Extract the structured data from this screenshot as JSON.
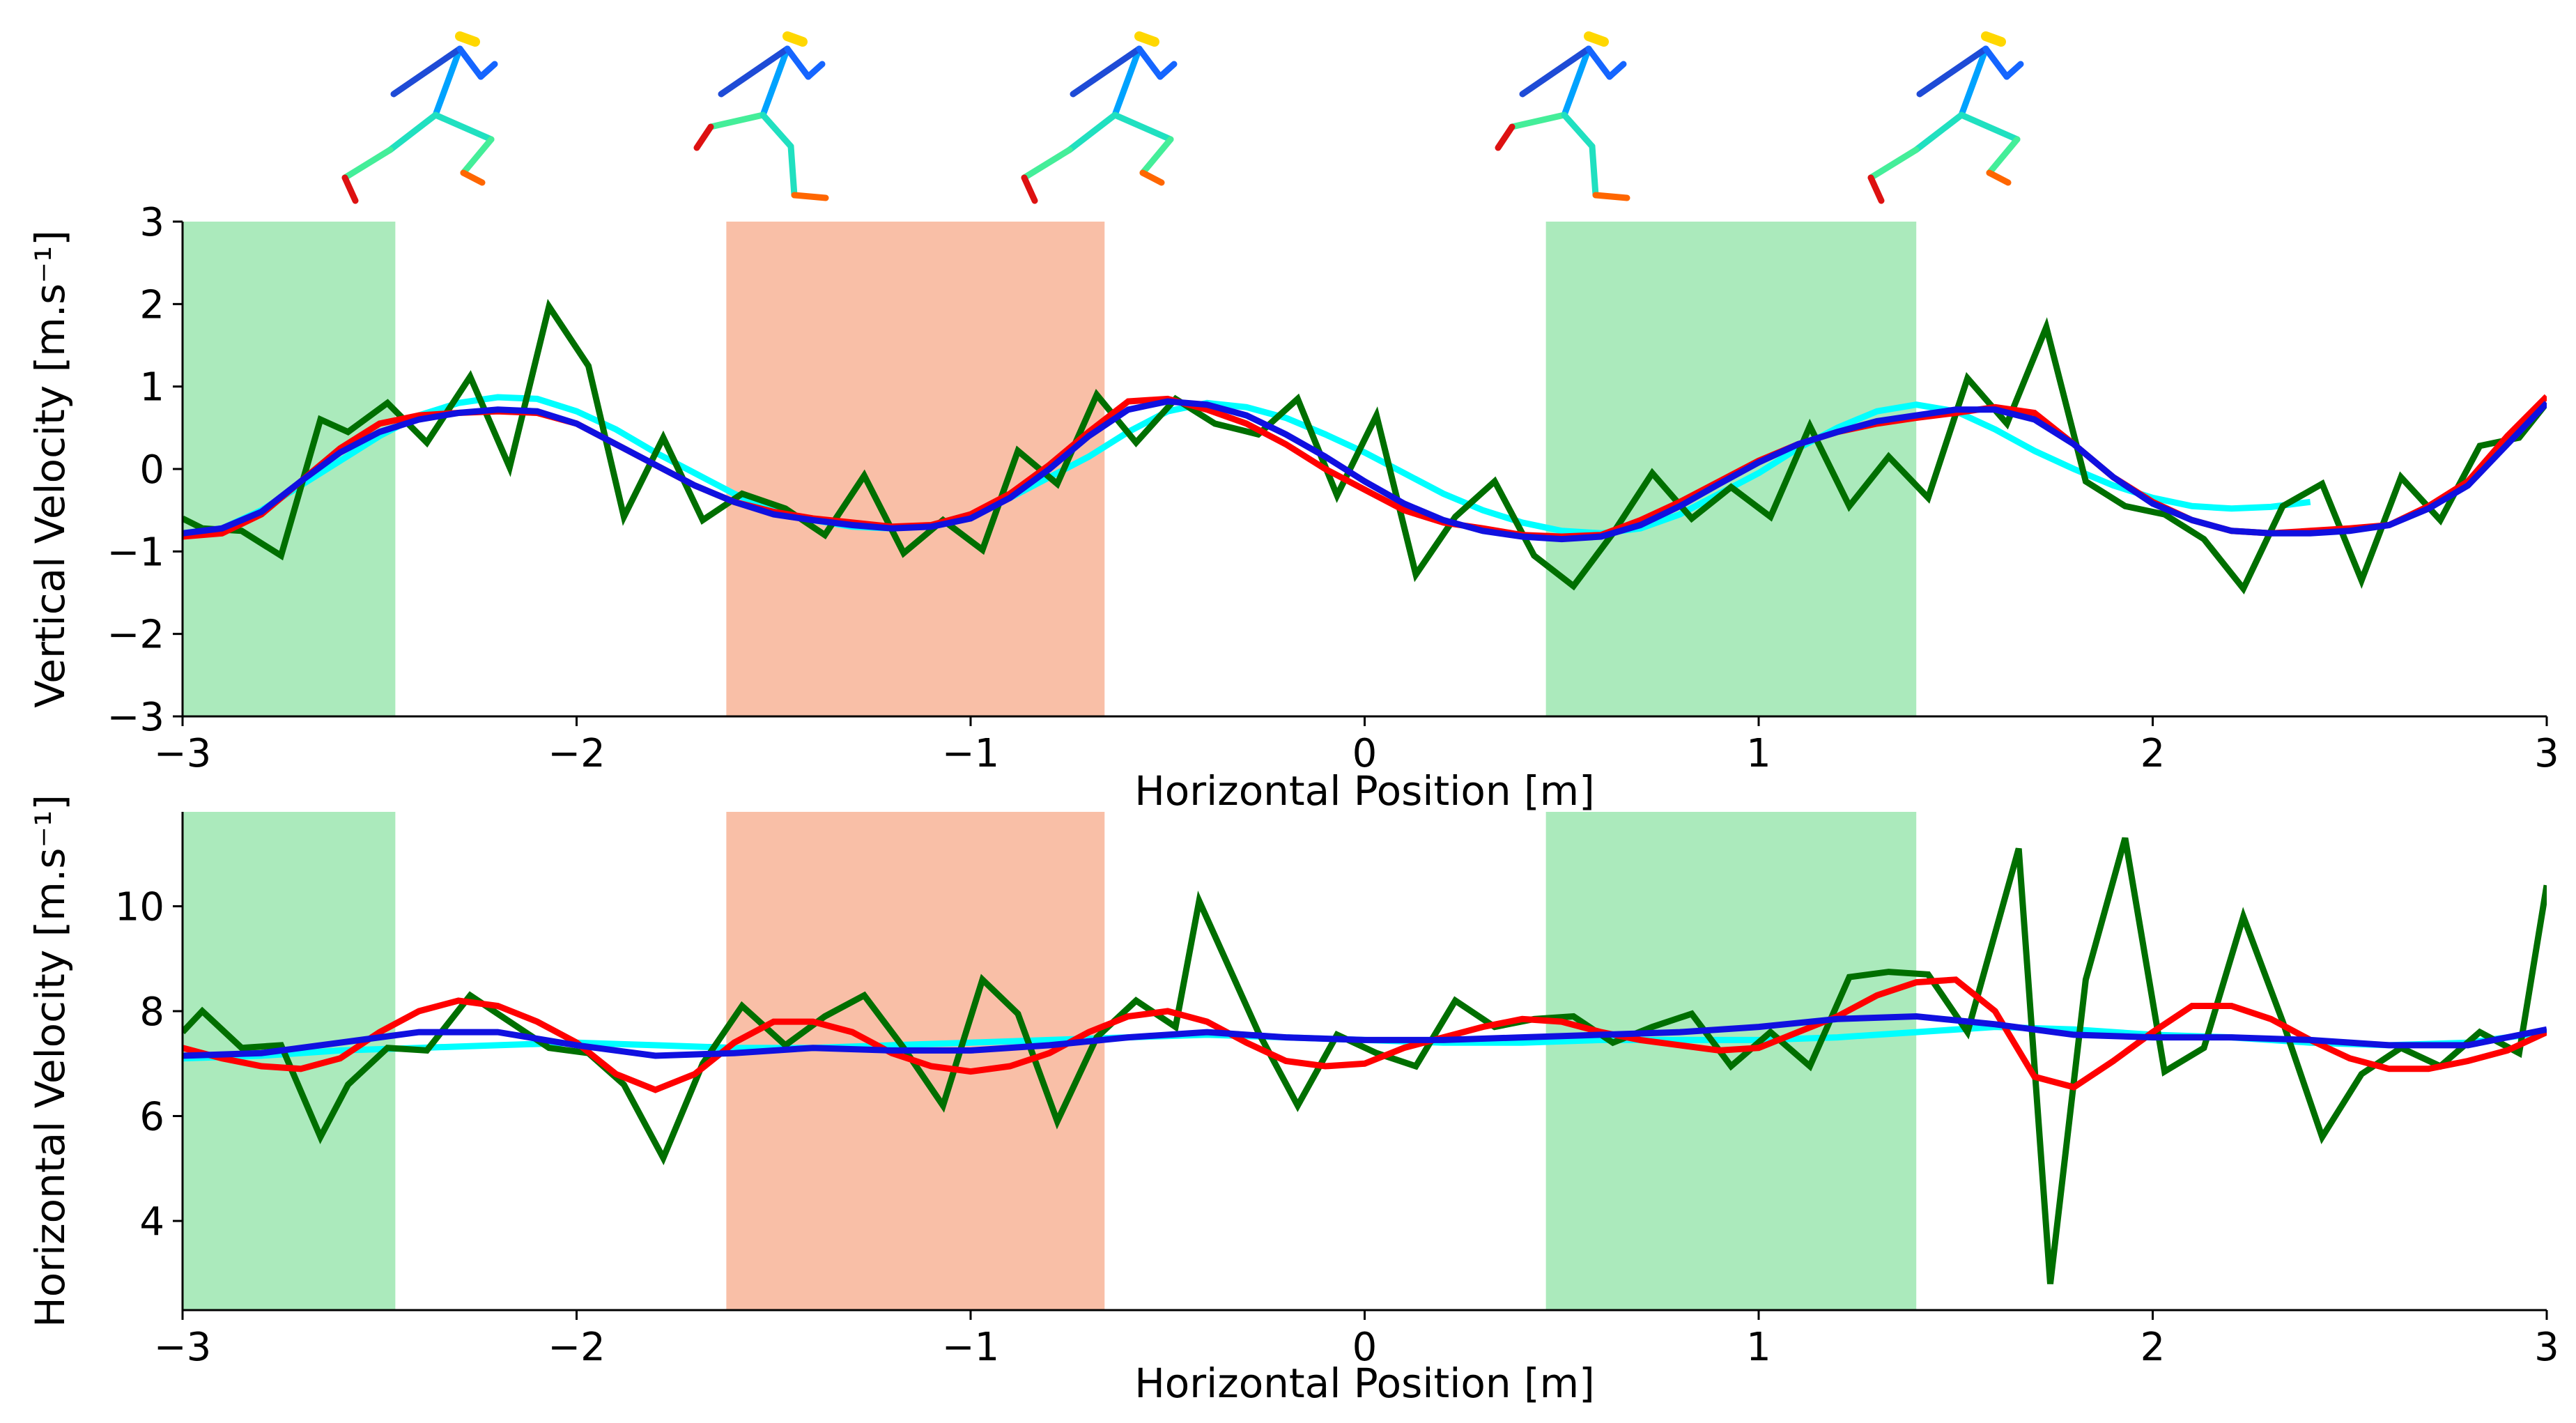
{
  "chart_data": [
    {
      "type": "line",
      "xlabel": "Horizontal Position [m]",
      "ylabel": "Vertical Velocity [m.s⁻¹]",
      "xlim": [
        -3,
        3
      ],
      "ylim": [
        -3,
        3
      ],
      "xticks": [
        -3,
        -2,
        -1,
        0,
        1,
        2,
        3
      ],
      "xtick_labels": [
        "−3",
        "−2",
        "−1",
        "0",
        "1",
        "2",
        "3"
      ],
      "yticks": [
        -3,
        -2,
        -1,
        0,
        1,
        2,
        3
      ],
      "ytick_labels": [
        "−3",
        "−2",
        "−1",
        "0",
        "1",
        "2",
        "3"
      ],
      "shaded_regions": [
        {
          "x0": -3.0,
          "x1": -2.46,
          "color": "#8fe3a6"
        },
        {
          "x0": -1.62,
          "x1": -0.66,
          "color": "#f7a98a"
        },
        {
          "x0": 0.46,
          "x1": 1.4,
          "color": "#8fe3a6"
        }
      ],
      "series": [
        {
          "color": "#00ffff",
          "x": [
            -3.0,
            -2.9,
            -2.8,
            -2.7,
            -2.6,
            -2.5,
            -2.4,
            -2.3,
            -2.2,
            -2.1,
            -2.0,
            -1.9,
            -1.8,
            -1.7,
            -1.6,
            -1.5,
            -1.4,
            -1.3,
            -1.2,
            -1.1,
            -1.0,
            -0.9,
            -0.8,
            -0.7,
            -0.6,
            -0.5,
            -0.4,
            -0.3,
            -0.2,
            -0.1,
            0.0,
            0.1,
            0.2,
            0.3,
            0.4,
            0.5,
            0.6,
            0.7,
            0.8,
            0.9,
            1.0,
            1.1,
            1.2,
            1.3,
            1.4,
            1.5,
            1.6,
            1.7,
            1.8,
            1.9,
            2.0,
            2.1,
            2.2,
            2.3,
            2.4
          ],
          "y": [
            -0.78,
            -0.72,
            -0.5,
            -0.2,
            0.1,
            0.4,
            0.65,
            0.8,
            0.87,
            0.85,
            0.7,
            0.48,
            0.2,
            -0.05,
            -0.3,
            -0.5,
            -0.62,
            -0.7,
            -0.72,
            -0.68,
            -0.55,
            -0.35,
            -0.1,
            0.15,
            0.45,
            0.7,
            0.8,
            0.75,
            0.62,
            0.42,
            0.2,
            -0.05,
            -0.3,
            -0.5,
            -0.65,
            -0.75,
            -0.78,
            -0.72,
            -0.55,
            -0.3,
            -0.05,
            0.25,
            0.5,
            0.7,
            0.78,
            0.7,
            0.48,
            0.22,
            0.0,
            -0.2,
            -0.35,
            -0.45,
            -0.48,
            -0.46,
            -0.4
          ]
        },
        {
          "color": "#006f00",
          "x": [
            -3.0,
            -2.95,
            -2.85,
            -2.75,
            -2.65,
            -2.58,
            -2.48,
            -2.38,
            -2.27,
            -2.17,
            -2.07,
            -1.97,
            -1.88,
            -1.78,
            -1.68,
            -1.58,
            -1.47,
            -1.37,
            -1.27,
            -1.17,
            -1.07,
            -0.97,
            -0.88,
            -0.78,
            -0.68,
            -0.58,
            -0.48,
            -0.38,
            -0.27,
            -0.17,
            -0.07,
            0.03,
            0.13,
            0.23,
            0.33,
            0.43,
            0.53,
            0.63,
            0.73,
            0.83,
            0.93,
            1.03,
            1.13,
            1.23,
            1.33,
            1.43,
            1.53,
            1.63,
            1.73,
            1.83,
            1.93,
            2.03,
            2.13,
            2.23,
            2.33,
            2.43,
            2.53,
            2.63,
            2.73,
            2.83,
            2.93,
            3.0
          ],
          "y": [
            -0.6,
            -0.72,
            -0.75,
            -1.05,
            0.6,
            0.45,
            0.8,
            0.32,
            1.12,
            0.02,
            1.97,
            1.25,
            -0.58,
            0.38,
            -0.62,
            -0.3,
            -0.48,
            -0.8,
            -0.08,
            -1.02,
            -0.62,
            -0.98,
            0.22,
            -0.18,
            0.9,
            0.32,
            0.85,
            0.55,
            0.42,
            0.85,
            -0.32,
            0.65,
            -1.28,
            -0.58,
            -0.15,
            -1.05,
            -1.42,
            -0.78,
            -0.05,
            -0.6,
            -0.22,
            -0.58,
            0.52,
            -0.45,
            0.15,
            -0.35,
            1.1,
            0.55,
            1.72,
            -0.15,
            -0.45,
            -0.55,
            -0.85,
            -1.45,
            -0.45,
            -0.18,
            -1.35,
            -0.1,
            -0.62,
            0.28,
            0.38,
            0.8
          ]
        },
        {
          "color": "#ff0000",
          "x": [
            -3.0,
            -2.9,
            -2.8,
            -2.7,
            -2.6,
            -2.5,
            -2.4,
            -2.3,
            -2.2,
            -2.1,
            -2.0,
            -1.9,
            -1.8,
            -1.7,
            -1.6,
            -1.5,
            -1.4,
            -1.3,
            -1.2,
            -1.1,
            -1.0,
            -0.9,
            -0.8,
            -0.7,
            -0.6,
            -0.5,
            -0.4,
            -0.3,
            -0.2,
            -0.1,
            0.0,
            0.1,
            0.2,
            0.3,
            0.4,
            0.5,
            0.6,
            0.7,
            0.8,
            0.9,
            1.0,
            1.1,
            1.2,
            1.3,
            1.4,
            1.5,
            1.6,
            1.7,
            1.8,
            1.9,
            2.0,
            2.1,
            2.2,
            2.3,
            2.4,
            2.5,
            2.6,
            2.7,
            2.8,
            2.9,
            3.0
          ],
          "y": [
            -0.82,
            -0.78,
            -0.55,
            -0.15,
            0.25,
            0.55,
            0.65,
            0.68,
            0.7,
            0.68,
            0.55,
            0.3,
            0.05,
            -0.2,
            -0.4,
            -0.52,
            -0.6,
            -0.65,
            -0.7,
            -0.68,
            -0.55,
            -0.3,
            0.05,
            0.45,
            0.82,
            0.85,
            0.72,
            0.55,
            0.3,
            0.0,
            -0.25,
            -0.5,
            -0.65,
            -0.72,
            -0.8,
            -0.82,
            -0.8,
            -0.62,
            -0.4,
            -0.15,
            0.1,
            0.3,
            0.45,
            0.55,
            0.62,
            0.68,
            0.75,
            0.68,
            0.3,
            -0.1,
            -0.4,
            -0.62,
            -0.75,
            -0.78,
            -0.75,
            -0.72,
            -0.68,
            -0.45,
            -0.15,
            0.4,
            0.88
          ]
        },
        {
          "color": "#1010e0",
          "x": [
            -3.0,
            -2.9,
            -2.8,
            -2.7,
            -2.6,
            -2.5,
            -2.4,
            -2.3,
            -2.2,
            -2.1,
            -2.0,
            -1.9,
            -1.8,
            -1.7,
            -1.6,
            -1.5,
            -1.4,
            -1.3,
            -1.2,
            -1.1,
            -1.0,
            -0.9,
            -0.8,
            -0.7,
            -0.6,
            -0.5,
            -0.4,
            -0.3,
            -0.2,
            -0.1,
            0.0,
            0.1,
            0.2,
            0.3,
            0.4,
            0.5,
            0.6,
            0.7,
            0.8,
            0.9,
            1.0,
            1.1,
            1.2,
            1.3,
            1.4,
            1.5,
            1.6,
            1.7,
            1.8,
            1.9,
            2.0,
            2.1,
            2.2,
            2.3,
            2.4,
            2.5,
            2.6,
            2.7,
            2.8,
            2.9,
            3.0
          ],
          "y": [
            -0.78,
            -0.72,
            -0.52,
            -0.15,
            0.2,
            0.45,
            0.6,
            0.68,
            0.72,
            0.7,
            0.55,
            0.3,
            0.05,
            -0.2,
            -0.4,
            -0.55,
            -0.62,
            -0.68,
            -0.72,
            -0.7,
            -0.6,
            -0.35,
            0.0,
            0.4,
            0.72,
            0.82,
            0.78,
            0.65,
            0.42,
            0.15,
            -0.15,
            -0.42,
            -0.62,
            -0.75,
            -0.82,
            -0.85,
            -0.82,
            -0.68,
            -0.45,
            -0.18,
            0.08,
            0.3,
            0.45,
            0.58,
            0.65,
            0.72,
            0.72,
            0.6,
            0.3,
            -0.1,
            -0.42,
            -0.62,
            -0.75,
            -0.78,
            -0.78,
            -0.75,
            -0.68,
            -0.48,
            -0.2,
            0.3,
            0.8
          ]
        }
      ]
    },
    {
      "type": "line",
      "xlabel": "Horizontal Position [m]",
      "ylabel": "Horizontal Velocity [m.s⁻¹]",
      "xlim": [
        -3,
        3
      ],
      "ylim": [
        2.3,
        11.8
      ],
      "xticks": [
        -3,
        -2,
        -1,
        0,
        1,
        2,
        3
      ],
      "xtick_labels": [
        "−3",
        "−2",
        "−1",
        "0",
        "1",
        "2",
        "3"
      ],
      "yticks": [
        4,
        6,
        8,
        10
      ],
      "ytick_labels": [
        "4",
        "6",
        "8",
        "10"
      ],
      "shaded_regions": [
        {
          "x0": -3.0,
          "x1": -2.46,
          "color": "#8fe3a6"
        },
        {
          "x0": -1.62,
          "x1": -0.66,
          "color": "#f7a98a"
        },
        {
          "x0": 0.46,
          "x1": 1.4,
          "color": "#8fe3a6"
        }
      ],
      "series": [
        {
          "color": "#00ffff",
          "x": [
            -3.0,
            -2.8,
            -2.6,
            -2.4,
            -2.2,
            -2.0,
            -1.8,
            -1.6,
            -1.4,
            -1.2,
            -1.0,
            -0.8,
            -0.6,
            -0.4,
            -0.2,
            0.0,
            0.2,
            0.4,
            0.6,
            0.8,
            1.0,
            1.2,
            1.4,
            1.6,
            1.8,
            2.0,
            2.2,
            2.4,
            2.6,
            2.8,
            3.0
          ],
          "y": [
            7.1,
            7.15,
            7.25,
            7.3,
            7.35,
            7.4,
            7.35,
            7.3,
            7.3,
            7.35,
            7.4,
            7.45,
            7.5,
            7.55,
            7.5,
            7.45,
            7.4,
            7.4,
            7.45,
            7.45,
            7.45,
            7.5,
            7.6,
            7.7,
            7.65,
            7.55,
            7.5,
            7.4,
            7.35,
            7.4,
            7.6
          ]
        },
        {
          "color": "#006f00",
          "x": [
            -3.0,
            -2.95,
            -2.85,
            -2.75,
            -2.65,
            -2.58,
            -2.48,
            -2.38,
            -2.27,
            -2.17,
            -2.07,
            -1.97,
            -1.88,
            -1.78,
            -1.68,
            -1.58,
            -1.47,
            -1.37,
            -1.27,
            -1.17,
            -1.07,
            -0.97,
            -0.88,
            -0.78,
            -0.68,
            -0.58,
            -0.48,
            -0.42,
            -0.27,
            -0.17,
            -0.07,
            0.03,
            0.13,
            0.23,
            0.33,
            0.43,
            0.53,
            0.63,
            0.73,
            0.83,
            0.93,
            1.03,
            1.13,
            1.23,
            1.33,
            1.43,
            1.53,
            1.66,
            1.74,
            1.83,
            1.93,
            2.03,
            2.13,
            2.23,
            2.33,
            2.43,
            2.53,
            2.63,
            2.73,
            2.83,
            2.93,
            3.0
          ],
          "y": [
            7.6,
            8.0,
            7.3,
            7.35,
            5.6,
            6.6,
            7.3,
            7.25,
            8.3,
            7.8,
            7.3,
            7.2,
            6.6,
            5.2,
            7.0,
            8.1,
            7.35,
            7.9,
            8.3,
            7.3,
            6.2,
            8.6,
            7.95,
            5.9,
            7.5,
            8.2,
            7.7,
            10.1,
            7.6,
            6.2,
            7.55,
            7.2,
            6.95,
            8.2,
            7.7,
            7.85,
            7.9,
            7.4,
            7.7,
            7.95,
            6.95,
            7.6,
            6.95,
            8.65,
            8.75,
            8.7,
            7.6,
            11.1,
            2.8,
            8.6,
            11.3,
            6.85,
            7.3,
            9.8,
            7.8,
            5.6,
            6.8,
            7.3,
            6.95,
            7.6,
            7.2,
            10.4
          ]
        },
        {
          "color": "#ff0000",
          "x": [
            -3.0,
            -2.9,
            -2.8,
            -2.7,
            -2.6,
            -2.5,
            -2.4,
            -2.3,
            -2.2,
            -2.1,
            -2.0,
            -1.9,
            -1.8,
            -1.7,
            -1.6,
            -1.5,
            -1.4,
            -1.3,
            -1.2,
            -1.1,
            -1.0,
            -0.9,
            -0.8,
            -0.7,
            -0.6,
            -0.5,
            -0.4,
            -0.3,
            -0.2,
            -0.1,
            0.0,
            0.1,
            0.2,
            0.3,
            0.4,
            0.5,
            0.6,
            0.7,
            0.8,
            0.9,
            1.0,
            1.1,
            1.2,
            1.3,
            1.4,
            1.5,
            1.6,
            1.7,
            1.8,
            1.9,
            2.0,
            2.1,
            2.2,
            2.3,
            2.4,
            2.5,
            2.6,
            2.7,
            2.8,
            2.9,
            3.0
          ],
          "y": [
            7.3,
            7.1,
            6.95,
            6.9,
            7.1,
            7.6,
            8.0,
            8.2,
            8.1,
            7.8,
            7.4,
            6.8,
            6.5,
            6.8,
            7.4,
            7.8,
            7.8,
            7.6,
            7.2,
            6.95,
            6.85,
            6.95,
            7.2,
            7.6,
            7.9,
            8.0,
            7.8,
            7.4,
            7.05,
            6.95,
            7.0,
            7.3,
            7.5,
            7.7,
            7.85,
            7.8,
            7.6,
            7.45,
            7.35,
            7.25,
            7.3,
            7.6,
            7.9,
            8.3,
            8.55,
            8.6,
            8.0,
            6.75,
            6.55,
            7.05,
            7.6,
            8.1,
            8.1,
            7.85,
            7.45,
            7.1,
            6.9,
            6.9,
            7.05,
            7.25,
            7.6
          ]
        },
        {
          "color": "#1010e0",
          "x": [
            -3.0,
            -2.8,
            -2.6,
            -2.4,
            -2.2,
            -2.0,
            -1.8,
            -1.6,
            -1.4,
            -1.2,
            -1.0,
            -0.8,
            -0.6,
            -0.4,
            -0.2,
            0.0,
            0.2,
            0.4,
            0.6,
            0.8,
            1.0,
            1.2,
            1.4,
            1.6,
            1.8,
            2.0,
            2.2,
            2.4,
            2.6,
            2.8,
            3.0
          ],
          "y": [
            7.15,
            7.2,
            7.4,
            7.6,
            7.6,
            7.35,
            7.15,
            7.2,
            7.3,
            7.25,
            7.25,
            7.35,
            7.5,
            7.6,
            7.5,
            7.45,
            7.45,
            7.5,
            7.55,
            7.6,
            7.7,
            7.85,
            7.9,
            7.75,
            7.55,
            7.5,
            7.5,
            7.45,
            7.35,
            7.35,
            7.65
          ]
        }
      ]
    }
  ],
  "figures": {
    "stick_figure_colors": {
      "head": "#ffd700",
      "arm_far": "#1e4bd6",
      "arm_near": "#1565ff",
      "torso": "#00a2ff",
      "leg_upper": "#20e0c0",
      "leg_lower": "#44ee99",
      "foot_a": "#dd1111",
      "foot_b": "#ff6600"
    }
  }
}
